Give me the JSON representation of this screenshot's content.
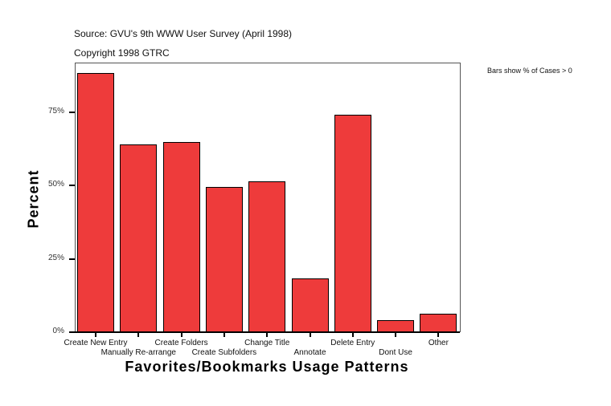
{
  "header": {
    "source": "Source: GVU's 9th WWW User Survey (April 1998)",
    "copyright": "Copyright 1998 GTRC",
    "note": "Bars show % of Cases > 0"
  },
  "colors": {
    "bar": "#EE3B3B",
    "bar_border": "#000000",
    "axis": "#000000",
    "frame": "#555555"
  },
  "chart_data": {
    "type": "bar",
    "title": "",
    "subtitle": "Source: GVU's 9th WWW User Survey (April 1998) / Copyright 1998 GTRC",
    "annotation": "Bars show % of Cases > 0",
    "xlabel": "Favorites/Bookmarks Usage Patterns",
    "ylabel": "Percent",
    "categories": [
      "Create New Entry",
      "Manually Re-arrange",
      "Create Folders",
      "Create Subfolders",
      "Change Title",
      "Annotate",
      "Delete Entry",
      "Dont Use",
      "Other"
    ],
    "values": [
      88.4,
      64.1,
      64.9,
      49.5,
      51.4,
      18.3,
      74.1,
      4.0,
      6.2
    ],
    "yticks": [
      "0%",
      "25%",
      "50%",
      "75%"
    ],
    "ylim": [
      0,
      92
    ],
    "grid": false,
    "legend": "none"
  }
}
